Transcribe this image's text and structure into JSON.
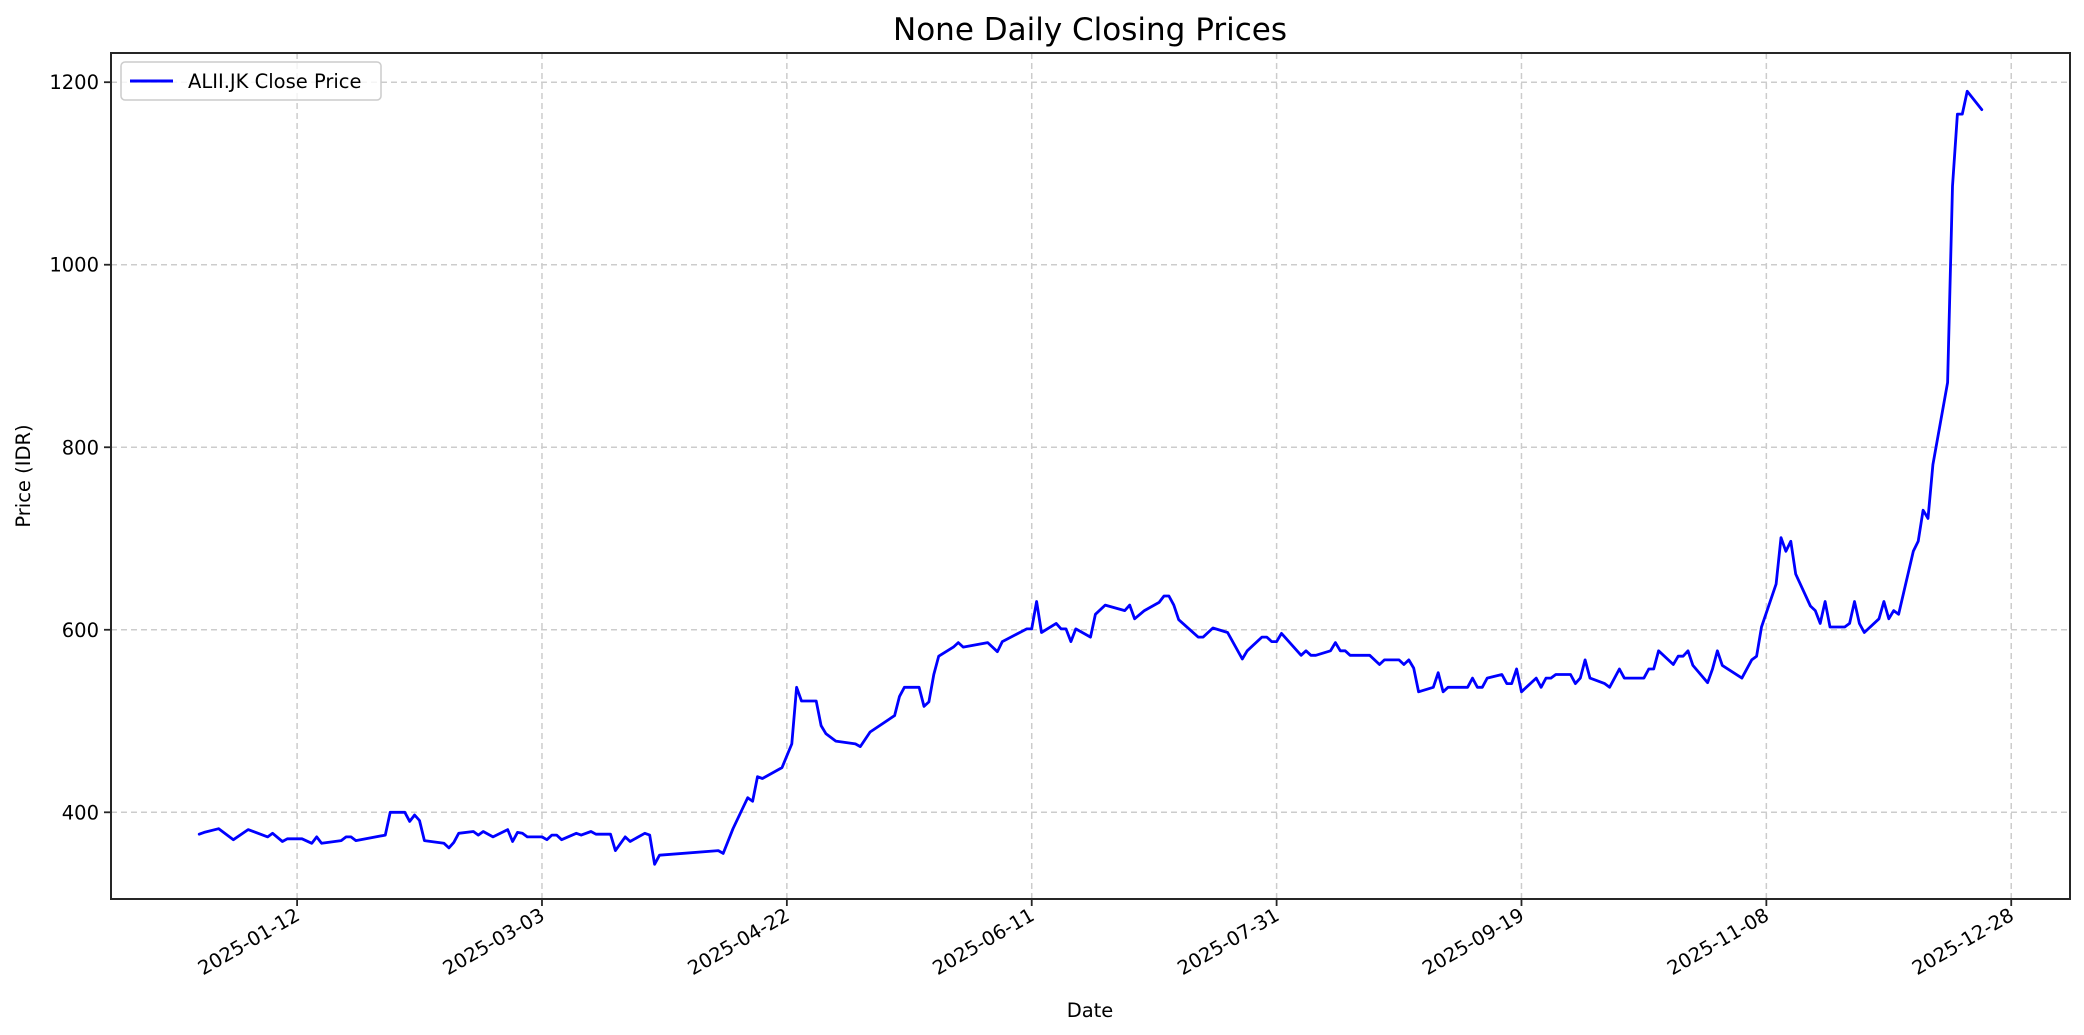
{
  "chart_data": {
    "type": "line",
    "title": "None Daily Closing Prices",
    "xlabel": "Date",
    "ylabel": "Price (IDR)",
    "ylim": [
      305,
      1232
    ],
    "xlim": [
      "2024-12-05",
      "2026-01-09"
    ],
    "grid": true,
    "legend_position": "upper left",
    "x_ticks": [
      "2025-01-12",
      "2025-03-03",
      "2025-04-22",
      "2025-06-11",
      "2025-07-31",
      "2025-09-19",
      "2025-11-08",
      "2025-12-28"
    ],
    "y_ticks": [
      400,
      600,
      800,
      1000,
      1200
    ],
    "series": [
      {
        "name": "ALII.JK Close Price",
        "color": "#0000ff",
        "x": [
          "2024-12-23",
          "2024-12-24",
          "2024-12-27",
          "2024-12-30",
          "2025-01-02",
          "2025-01-06",
          "2025-01-07",
          "2025-01-09",
          "2025-01-10",
          "2025-01-13",
          "2025-01-15",
          "2025-01-16",
          "2025-01-17",
          "2025-01-21",
          "2025-01-22",
          "2025-01-23",
          "2025-01-24",
          "2025-01-30",
          "2025-01-31",
          "2025-02-03",
          "2025-02-04",
          "2025-02-05",
          "2025-02-06",
          "2025-02-07",
          "2025-02-11",
          "2025-02-12",
          "2025-02-13",
          "2025-02-14",
          "2025-02-17",
          "2025-02-18",
          "2025-02-19",
          "2025-02-21",
          "2025-02-24",
          "2025-02-25",
          "2025-02-26",
          "2025-02-27",
          "2025-02-28",
          "2025-03-03",
          "2025-03-04",
          "2025-03-05",
          "2025-03-06",
          "2025-03-07",
          "2025-03-10",
          "2025-03-11",
          "2025-03-13",
          "2025-03-14",
          "2025-03-17",
          "2025-03-18",
          "2025-03-20",
          "2025-03-21",
          "2025-03-24",
          "2025-03-25",
          "2025-03-26",
          "2025-03-27",
          "2025-04-08",
          "2025-04-09",
          "2025-04-11",
          "2025-04-14",
          "2025-04-15",
          "2025-04-16",
          "2025-04-17",
          "2025-04-21",
          "2025-04-23",
          "2025-04-24",
          "2025-04-25",
          "2025-04-28",
          "2025-04-29",
          "2025-04-30",
          "2025-05-02",
          "2025-05-06",
          "2025-05-07",
          "2025-05-09",
          "2025-05-14",
          "2025-05-15",
          "2025-05-16",
          "2025-05-19",
          "2025-05-20",
          "2025-05-21",
          "2025-05-22",
          "2025-05-23",
          "2025-05-26",
          "2025-05-27",
          "2025-05-28",
          "2025-06-02",
          "2025-06-04",
          "2025-06-05",
          "2025-06-10",
          "2025-06-11",
          "2025-06-12",
          "2025-06-13",
          "2025-06-16",
          "2025-06-17",
          "2025-06-18",
          "2025-06-19",
          "2025-06-20",
          "2025-06-23",
          "2025-06-24",
          "2025-06-26",
          "2025-06-30",
          "2025-07-01",
          "2025-07-02",
          "2025-07-04",
          "2025-07-07",
          "2025-07-08",
          "2025-07-09",
          "2025-07-10",
          "2025-07-11",
          "2025-07-15",
          "2025-07-16",
          "2025-07-18",
          "2025-07-21",
          "2025-07-24",
          "2025-07-25",
          "2025-07-28",
          "2025-07-29",
          "2025-07-30",
          "2025-07-31",
          "2025-08-01",
          "2025-08-05",
          "2025-08-06",
          "2025-08-07",
          "2025-08-08",
          "2025-08-11",
          "2025-08-12",
          "2025-08-13",
          "2025-08-14",
          "2025-08-15",
          "2025-08-19",
          "2025-08-21",
          "2025-08-22",
          "2025-08-25",
          "2025-08-26",
          "2025-08-27",
          "2025-08-28",
          "2025-08-29",
          "2025-09-01",
          "2025-09-02",
          "2025-09-03",
          "2025-09-04",
          "2025-09-08",
          "2025-09-09",
          "2025-09-10",
          "2025-09-11",
          "2025-09-12",
          "2025-09-15",
          "2025-09-16",
          "2025-09-17",
          "2025-09-18",
          "2025-09-19",
          "2025-09-22",
          "2025-09-23",
          "2025-09-24",
          "2025-09-25",
          "2025-09-26",
          "2025-09-29",
          "2025-09-30",
          "2025-10-01",
          "2025-10-02",
          "2025-10-03",
          "2025-10-06",
          "2025-10-07",
          "2025-10-09",
          "2025-10-10",
          "2025-10-14",
          "2025-10-15",
          "2025-10-16",
          "2025-10-17",
          "2025-10-20",
          "2025-10-21",
          "2025-10-22",
          "2025-10-23",
          "2025-10-24",
          "2025-10-27",
          "2025-10-28",
          "2025-10-29",
          "2025-10-30",
          "2025-11-03",
          "2025-11-05",
          "2025-11-06",
          "2025-11-07",
          "2025-11-10",
          "2025-11-11",
          "2025-11-12",
          "2025-11-13",
          "2025-11-14",
          "2025-11-17",
          "2025-11-18",
          "2025-11-19",
          "2025-11-20",
          "2025-11-21",
          "2025-11-24",
          "2025-11-25",
          "2025-11-26",
          "2025-11-27",
          "2025-11-28",
          "2025-12-01",
          "2025-12-02",
          "2025-12-03",
          "2025-12-04",
          "2025-12-05",
          "2025-12-08",
          "2025-12-09",
          "2025-12-10",
          "2025-12-11",
          "2025-12-12",
          "2025-12-15",
          "2025-12-16",
          "2025-12-17",
          "2025-12-18",
          "2025-12-19",
          "2025-12-22"
        ],
        "values": [
          376,
          378,
          382,
          370,
          381,
          373,
          377,
          368,
          371,
          371,
          366,
          373,
          366,
          369,
          373,
          373,
          369,
          375,
          400,
          400,
          390,
          397,
          391,
          369,
          366,
          361,
          367,
          377,
          379,
          375,
          379,
          373,
          381,
          368,
          378,
          377,
          373,
          373,
          370,
          375,
          375,
          370,
          377,
          375,
          379,
          376,
          376,
          358,
          373,
          368,
          377,
          375,
          343,
          353,
          358,
          355,
          382,
          416,
          412,
          439,
          437,
          449,
          475,
          537,
          522,
          522,
          495,
          486,
          478,
          475,
          472,
          488,
          506,
          527,
          537,
          537,
          516,
          521,
          551,
          571,
          581,
          586,
          581,
          586,
          576,
          587,
          601,
          601,
          631,
          597,
          607,
          601,
          601,
          587,
          601,
          592,
          617,
          627,
          621,
          627,
          612,
          621,
          630,
          637,
          637,
          627,
          611,
          592,
          592,
          602,
          597,
          568,
          577,
          592,
          592,
          587,
          587,
          596,
          572,
          577,
          572,
          572,
          577,
          586,
          577,
          577,
          572,
          572,
          562,
          567,
          567,
          562,
          567,
          558,
          532,
          537,
          553,
          532,
          537,
          537,
          547,
          537,
          537,
          547,
          551,
          541,
          541,
          557,
          532,
          547,
          537,
          547,
          547,
          551,
          551,
          541,
          547,
          567,
          547,
          541,
          537,
          557,
          547,
          547,
          557,
          557,
          577,
          562,
          571,
          571,
          577,
          561,
          542,
          557,
          577,
          561,
          547,
          567,
          571,
          603,
          650,
          701,
          686,
          697,
          661,
          626,
          621,
          607,
          631,
          603,
          603,
          607,
          631,
          607,
          597,
          612,
          631,
          612,
          621,
          617,
          686,
          697,
          731,
          722,
          781,
          871,
          1086,
          1165,
          1165,
          1190,
          1170
        ]
      }
    ]
  },
  "figure": {
    "title": "None Daily Closing Prices",
    "xlabel": "Date",
    "ylabel": "Price (IDR)",
    "legend_label": "ALII.JK Close Price",
    "line_color": "#0000ff",
    "grid_color": "#cccccc",
    "axis_color": "#262626"
  }
}
